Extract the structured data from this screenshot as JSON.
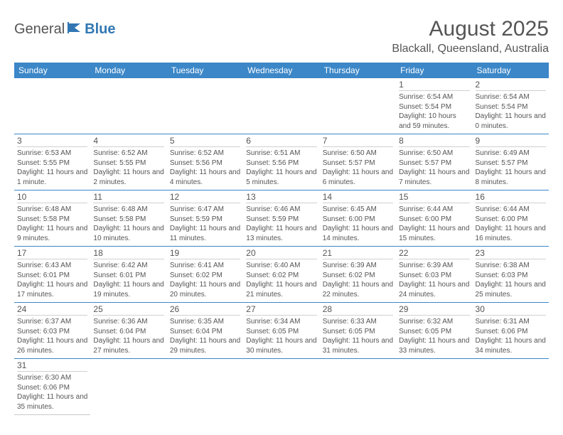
{
  "logo": {
    "text1": "General",
    "text2": "Blue",
    "color1": "#555555",
    "color2": "#3277b3"
  },
  "title": "August 2025",
  "location": "Blackall, Queensland, Australia",
  "header_bg": "#3b87c8",
  "header_fg": "#ffffff",
  "text_color": "#555555",
  "accent_border": "#3b87c8",
  "light_border": "#c9c9c9",
  "dayHeaders": [
    "Sunday",
    "Monday",
    "Tuesday",
    "Wednesday",
    "Thursday",
    "Friday",
    "Saturday"
  ],
  "weeks": [
    [
      null,
      null,
      null,
      null,
      null,
      {
        "n": "1",
        "sr": "6:54 AM",
        "ss": "5:54 PM",
        "dl": "10 hours and 59 minutes."
      },
      {
        "n": "2",
        "sr": "6:54 AM",
        "ss": "5:54 PM",
        "dl": "11 hours and 0 minutes."
      }
    ],
    [
      {
        "n": "3",
        "sr": "6:53 AM",
        "ss": "5:55 PM",
        "dl": "11 hours and 1 minute."
      },
      {
        "n": "4",
        "sr": "6:52 AM",
        "ss": "5:55 PM",
        "dl": "11 hours and 2 minutes."
      },
      {
        "n": "5",
        "sr": "6:52 AM",
        "ss": "5:56 PM",
        "dl": "11 hours and 4 minutes."
      },
      {
        "n": "6",
        "sr": "6:51 AM",
        "ss": "5:56 PM",
        "dl": "11 hours and 5 minutes."
      },
      {
        "n": "7",
        "sr": "6:50 AM",
        "ss": "5:57 PM",
        "dl": "11 hours and 6 minutes."
      },
      {
        "n": "8",
        "sr": "6:50 AM",
        "ss": "5:57 PM",
        "dl": "11 hours and 7 minutes."
      },
      {
        "n": "9",
        "sr": "6:49 AM",
        "ss": "5:57 PM",
        "dl": "11 hours and 8 minutes."
      }
    ],
    [
      {
        "n": "10",
        "sr": "6:48 AM",
        "ss": "5:58 PM",
        "dl": "11 hours and 9 minutes."
      },
      {
        "n": "11",
        "sr": "6:48 AM",
        "ss": "5:58 PM",
        "dl": "11 hours and 10 minutes."
      },
      {
        "n": "12",
        "sr": "6:47 AM",
        "ss": "5:59 PM",
        "dl": "11 hours and 11 minutes."
      },
      {
        "n": "13",
        "sr": "6:46 AM",
        "ss": "5:59 PM",
        "dl": "11 hours and 13 minutes."
      },
      {
        "n": "14",
        "sr": "6:45 AM",
        "ss": "6:00 PM",
        "dl": "11 hours and 14 minutes."
      },
      {
        "n": "15",
        "sr": "6:44 AM",
        "ss": "6:00 PM",
        "dl": "11 hours and 15 minutes."
      },
      {
        "n": "16",
        "sr": "6:44 AM",
        "ss": "6:00 PM",
        "dl": "11 hours and 16 minutes."
      }
    ],
    [
      {
        "n": "17",
        "sr": "6:43 AM",
        "ss": "6:01 PM",
        "dl": "11 hours and 17 minutes."
      },
      {
        "n": "18",
        "sr": "6:42 AM",
        "ss": "6:01 PM",
        "dl": "11 hours and 19 minutes."
      },
      {
        "n": "19",
        "sr": "6:41 AM",
        "ss": "6:02 PM",
        "dl": "11 hours and 20 minutes."
      },
      {
        "n": "20",
        "sr": "6:40 AM",
        "ss": "6:02 PM",
        "dl": "11 hours and 21 minutes."
      },
      {
        "n": "21",
        "sr": "6:39 AM",
        "ss": "6:02 PM",
        "dl": "11 hours and 22 minutes."
      },
      {
        "n": "22",
        "sr": "6:39 AM",
        "ss": "6:03 PM",
        "dl": "11 hours and 24 minutes."
      },
      {
        "n": "23",
        "sr": "6:38 AM",
        "ss": "6:03 PM",
        "dl": "11 hours and 25 minutes."
      }
    ],
    [
      {
        "n": "24",
        "sr": "6:37 AM",
        "ss": "6:03 PM",
        "dl": "11 hours and 26 minutes."
      },
      {
        "n": "25",
        "sr": "6:36 AM",
        "ss": "6:04 PM",
        "dl": "11 hours and 27 minutes."
      },
      {
        "n": "26",
        "sr": "6:35 AM",
        "ss": "6:04 PM",
        "dl": "11 hours and 29 minutes."
      },
      {
        "n": "27",
        "sr": "6:34 AM",
        "ss": "6:05 PM",
        "dl": "11 hours and 30 minutes."
      },
      {
        "n": "28",
        "sr": "6:33 AM",
        "ss": "6:05 PM",
        "dl": "11 hours and 31 minutes."
      },
      {
        "n": "29",
        "sr": "6:32 AM",
        "ss": "6:05 PM",
        "dl": "11 hours and 33 minutes."
      },
      {
        "n": "30",
        "sr": "6:31 AM",
        "ss": "6:06 PM",
        "dl": "11 hours and 34 minutes."
      }
    ],
    [
      {
        "n": "31",
        "sr": "6:30 AM",
        "ss": "6:06 PM",
        "dl": "11 hours and 35 minutes."
      },
      null,
      null,
      null,
      null,
      null,
      null
    ]
  ],
  "labels": {
    "sunrise": "Sunrise:",
    "sunset": "Sunset:",
    "daylight": "Daylight:"
  }
}
